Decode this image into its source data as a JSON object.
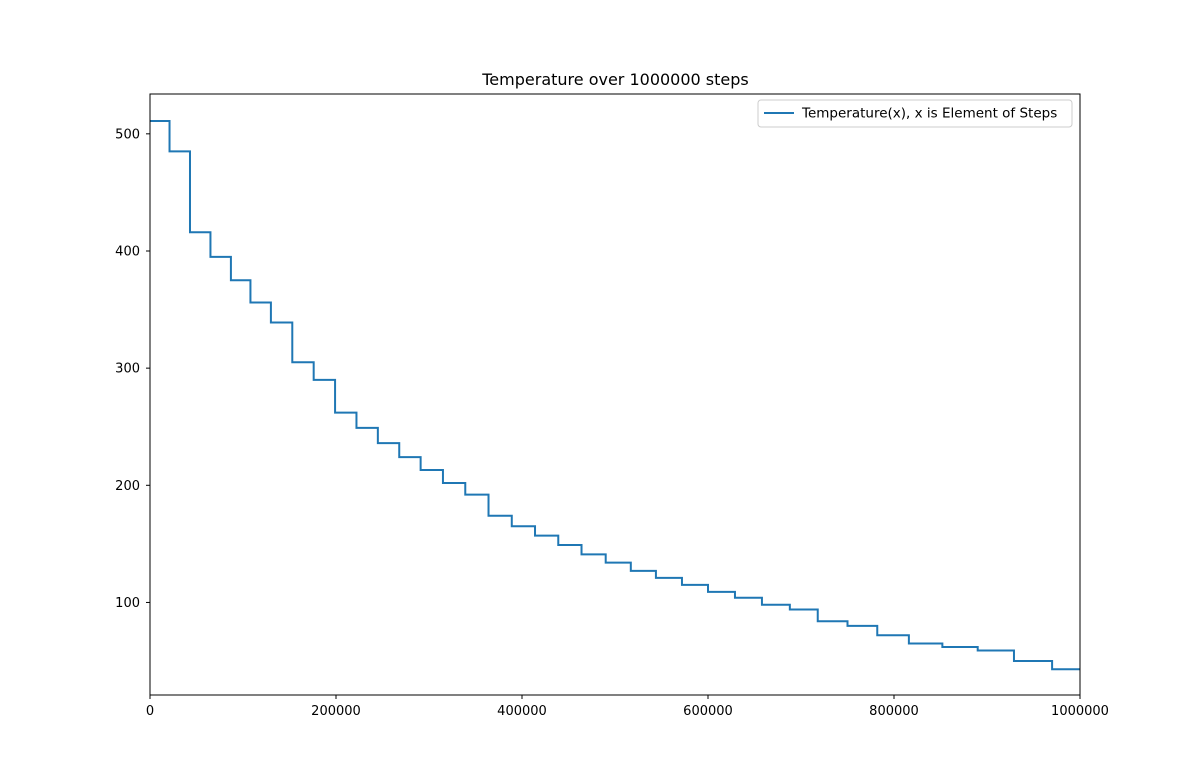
{
  "chart_data": {
    "type": "line",
    "title": "Temperature over  1000000 steps",
    "xlabel": "",
    "ylabel": "",
    "xlim": [
      0,
      1000000
    ],
    "ylim": [
      21,
      534
    ],
    "x_ticks": [
      0,
      200000,
      400000,
      600000,
      800000,
      1000000
    ],
    "x_tick_labels": [
      "0",
      "200000",
      "400000",
      "600000",
      "800000",
      "1000000"
    ],
    "y_ticks": [
      100,
      200,
      300,
      400,
      500
    ],
    "y_tick_labels": [
      "100",
      "200",
      "300",
      "400",
      "500"
    ],
    "grid": false,
    "legend_position": "top-right",
    "colors": {
      "series": "#1f77b4"
    },
    "series": [
      {
        "name": "Temperature(x), x is Element of Steps",
        "style": "step",
        "x": [
          0,
          21000,
          43000,
          65000,
          87000,
          108000,
          130000,
          153000,
          176000,
          199000,
          222000,
          245000,
          268000,
          291000,
          315000,
          339000,
          364000,
          389000,
          414000,
          439000,
          464000,
          490000,
          517000,
          544000,
          572000,
          600000,
          629000,
          658000,
          688000,
          718000,
          750000,
          782000,
          816000,
          852000,
          890000,
          929000,
          970000,
          1000000
        ],
        "y": [
          511,
          485,
          416,
          395,
          375,
          356,
          339,
          305,
          290,
          262,
          249,
          236,
          224,
          213,
          202,
          192,
          174,
          165,
          157,
          149,
          141,
          134,
          127,
          121,
          115,
          109,
          104,
          98,
          94,
          84,
          80,
          72,
          65,
          62,
          59,
          50,
          43,
          43
        ]
      }
    ]
  }
}
